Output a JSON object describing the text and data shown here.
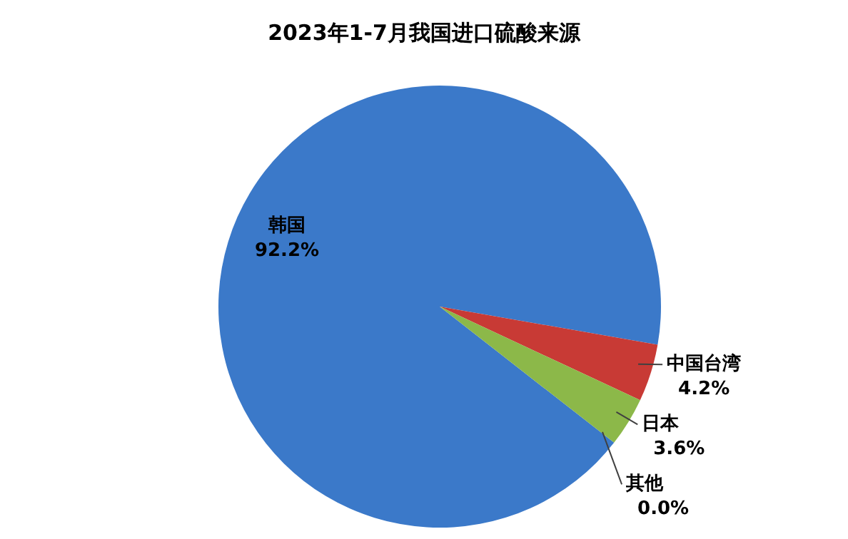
{
  "chart_data": {
    "type": "pie",
    "title": "2023年1-7月我国进口硫酸来源",
    "categories": [
      "韩国",
      "中国台湾",
      "日本",
      "其他"
    ],
    "values": [
      92.2,
      4.2,
      3.6,
      0.0
    ],
    "value_labels": [
      "92.2%",
      "4.2%",
      "3.6%",
      "0.0%"
    ],
    "colors": [
      "#3b79c9",
      "#c83a35",
      "#8cb849",
      "#6e4fa0"
    ]
  }
}
